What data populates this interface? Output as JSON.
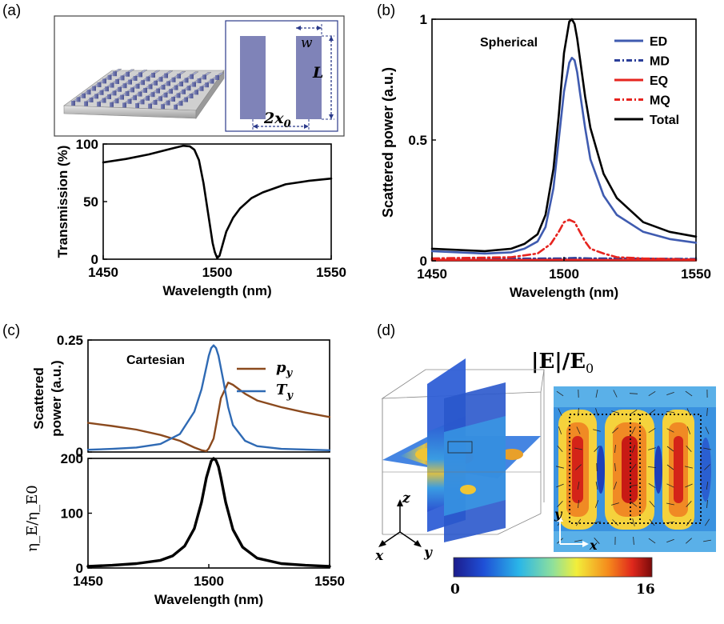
{
  "panels": {
    "a": {
      "label": "(a)",
      "inset": {
        "w_label": "w",
        "L_label": "L",
        "x0_label": "2x",
        "x0_sub": "0"
      },
      "chart_data": {
        "type": "line",
        "xlabel": "Wavelength (nm)",
        "ylabel": "Transmission (%)",
        "xlim": [
          1450,
          1550
        ],
        "ylim": [
          0,
          100
        ],
        "xticks": [
          "1450",
          "1500",
          "1550"
        ],
        "yticks": [
          "0",
          "50",
          "100"
        ],
        "series": [
          {
            "color": "#000000",
            "x": [
              1450,
              1460,
              1470,
              1480,
              1485,
              1488,
              1490,
              1492,
              1494,
              1496,
              1498,
              1499,
              1500,
              1501,
              1502,
              1504,
              1507,
              1510,
              1515,
              1520,
              1530,
              1540,
              1550
            ],
            "y": [
              84,
              87,
              91,
              96,
              98.5,
              98,
              95,
              86,
              66,
              40,
              14,
              6,
              1,
              3,
              10,
              24,
              36,
              44,
              53,
              58,
              65,
              68,
              70
            ]
          }
        ]
      }
    },
    "b": {
      "label": "(b)",
      "annotation": "Spherical",
      "chart_data": {
        "type": "line",
        "xlabel": "Wavelength (nm)",
        "ylabel": "Scattered power (a.u.)",
        "xlim": [
          1450,
          1550
        ],
        "ylim": [
          0,
          1
        ],
        "xticks": [
          "1450",
          "1500",
          "1550"
        ],
        "yticks": [
          "0",
          "0.5",
          "1"
        ],
        "legend_position": "top-right",
        "series": [
          {
            "name": "ED",
            "color": "#3f5bb0",
            "style": "solid",
            "x": [
              1450,
              1470,
              1480,
              1485,
              1490,
              1493,
              1496,
              1498,
              1500,
              1502,
              1503,
              1504,
              1505,
              1506,
              1508,
              1510,
              1515,
              1520,
              1530,
              1540,
              1550
            ],
            "y": [
              0.04,
              0.03,
              0.035,
              0.05,
              0.08,
              0.14,
              0.3,
              0.5,
              0.7,
              0.82,
              0.84,
              0.83,
              0.78,
              0.7,
              0.55,
              0.42,
              0.27,
              0.19,
              0.12,
              0.09,
              0.075
            ]
          },
          {
            "name": "MD",
            "color": "#2b3f9a",
            "style": "dashdot",
            "x": [
              1450,
              1500,
              1504,
              1510,
              1550
            ],
            "y": [
              0.008,
              0.01,
              0.012,
              0.01,
              0.008
            ]
          },
          {
            "name": "EQ",
            "color": "#e6241f",
            "style": "solid",
            "x": [
              1450,
              1500,
              1550
            ],
            "y": [
              0.003,
              0.004,
              0.003
            ]
          },
          {
            "name": "MQ",
            "color": "#e6241f",
            "style": "dashdot",
            "x": [
              1450,
              1480,
              1490,
              1495,
              1498,
              1500,
              1502,
              1504,
              1506,
              1508,
              1510,
              1515,
              1520,
              1530,
              1550
            ],
            "y": [
              0.01,
              0.015,
              0.03,
              0.07,
              0.12,
              0.16,
              0.17,
              0.16,
              0.12,
              0.08,
              0.05,
              0.03,
              0.015,
              0.01,
              0.005
            ]
          },
          {
            "name": "Total",
            "color": "#000000",
            "style": "solid",
            "x": [
              1450,
              1470,
              1480,
              1485,
              1490,
              1493,
              1496,
              1498,
              1500,
              1502,
              1503,
              1504,
              1505,
              1506,
              1508,
              1510,
              1515,
              1520,
              1530,
              1540,
              1550
            ],
            "y": [
              0.05,
              0.04,
              0.05,
              0.07,
              0.11,
              0.19,
              0.38,
              0.6,
              0.86,
              0.99,
              1.0,
              0.98,
              0.92,
              0.84,
              0.68,
              0.55,
              0.36,
              0.26,
              0.16,
              0.12,
              0.1
            ]
          }
        ]
      }
    },
    "c": {
      "label": "(c)",
      "annotation": "Cartesian",
      "chart_data": [
        {
          "type": "line",
          "ylabel": "Scattered power (a.u.)",
          "ylabel_lines": [
            "Scattered",
            "power (a.u.)"
          ],
          "xlim": [
            1450,
            1550
          ],
          "ylim": [
            0,
            0.25
          ],
          "yticks": [
            "0",
            "0.25"
          ],
          "legend_position": "top-right",
          "series": [
            {
              "name": "p",
              "name_sub": "y",
              "color": "#8b4a1e",
              "x": [
                1450,
                1460,
                1470,
                1480,
                1488,
                1494,
                1497,
                1499,
                1500,
                1502,
                1503,
                1505,
                1508,
                1510,
                1515,
                1520,
                1530,
                1540,
                1550
              ],
              "y": [
                0.065,
                0.058,
                0.05,
                0.038,
                0.025,
                0.01,
                0.004,
                0.002,
                0.008,
                0.03,
                0.06,
                0.12,
                0.155,
                0.15,
                0.13,
                0.115,
                0.1,
                0.088,
                0.078
              ]
            },
            {
              "name": "T",
              "name_sub": "y",
              "color": "#2f6ab4",
              "x": [
                1450,
                1460,
                1470,
                1480,
                1488,
                1494,
                1497,
                1499,
                1500,
                1501,
                1502,
                1503,
                1504,
                1506,
                1508,
                1510,
                1515,
                1520,
                1530,
                1550
              ],
              "y": [
                0.005,
                0.007,
                0.01,
                0.018,
                0.04,
                0.09,
                0.14,
                0.19,
                0.215,
                0.232,
                0.238,
                0.232,
                0.215,
                0.16,
                0.1,
                0.06,
                0.025,
                0.013,
                0.007,
                0.004
              ]
            }
          ]
        },
        {
          "type": "line",
          "xlabel": "Wavelength (nm)",
          "ylabel": "η_E/η_E0",
          "xlim": [
            1450,
            1550
          ],
          "ylim": [
            0,
            200
          ],
          "xticks": [
            "1450",
            "1500",
            "1550"
          ],
          "yticks": [
            "0",
            "100",
            "200"
          ],
          "series": [
            {
              "color": "#000000",
              "x": [
                1450,
                1460,
                1470,
                1480,
                1485,
                1490,
                1494,
                1497,
                1499,
                1501,
                1502,
                1503,
                1504,
                1505,
                1507,
                1510,
                1514,
                1520,
                1530,
                1540,
                1550
              ],
              "y": [
                3,
                5,
                8,
                14,
                22,
                40,
                72,
                120,
                165,
                195,
                200,
                196,
                185,
                165,
                120,
                70,
                38,
                18,
                8,
                5,
                3
              ]
            }
          ]
        }
      ]
    },
    "d": {
      "label": "(d)",
      "title": "|E|/E",
      "title_sub": "0",
      "axes3d": {
        "z": "z",
        "x": "x",
        "y": "y"
      },
      "axes2d": {
        "y": "y",
        "x": "x"
      },
      "colorbar": {
        "min": "0",
        "max": "16"
      }
    }
  }
}
